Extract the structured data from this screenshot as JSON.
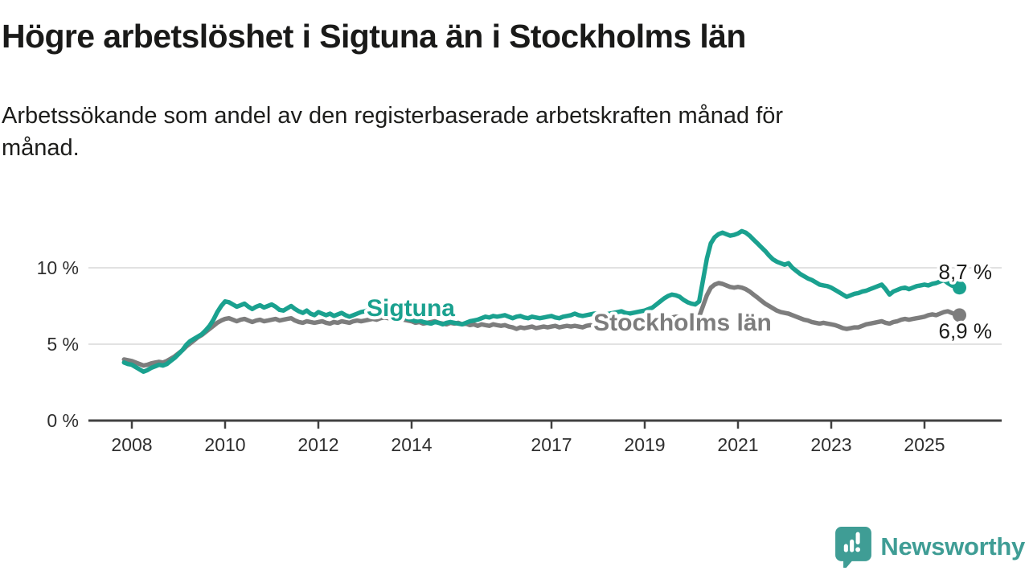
{
  "title": "Högre arbetslöshet i Sigtuna än i Stockholms län",
  "subtitle": "Arbetssökande som andel av den registerbaserade arbetskraften månad för månad.",
  "subtitle_lines": [
    "Arbetssökande som andel av den registerbaserade arbetskraften månad för",
    "månad."
  ],
  "branding": {
    "logo_text": "Newsworthy",
    "logo_icon": "newsworthy-speech-bubble-bar-chart-icon",
    "logo_color": "#3f9d95"
  },
  "colors": {
    "sigtuna": "#1aa18f",
    "stockholm": "#7d7d7d",
    "grid": "#d9d9d9",
    "axis": "#414141",
    "text": "#1d1d1b"
  },
  "chart_data": {
    "type": "line",
    "title": "Högre arbetslöshet i Sigtuna än i Stockholms län",
    "subtitle": "Arbetssökande som andel av den registerbaserade arbetskraften månad för månad.",
    "unit": "%",
    "frequency": "monthly",
    "start": {
      "year": 2007,
      "month": 11
    },
    "xlim": [
      2007.8,
      2026.2
    ],
    "ylim": [
      0,
      13.5
    ],
    "grid": "horizontal",
    "legend": "inline-labels",
    "x_ticks": [
      2008,
      2010,
      2012,
      2014,
      2017,
      2019,
      2021,
      2023,
      2025
    ],
    "y_ticks": [
      {
        "value": 0,
        "label": "0 %"
      },
      {
        "value": 5,
        "label": "5 %"
      },
      {
        "value": 10,
        "label": "10 %"
      }
    ],
    "y_gridlines": [
      5,
      10
    ],
    "series": [
      {
        "id": "sigtuna",
        "name": "Sigtuna",
        "color": "#1aa18f",
        "end_value": 8.7,
        "end_label": "8,7 %",
        "values": [
          3.8,
          3.7,
          3.65,
          3.5,
          3.35,
          3.2,
          3.3,
          3.45,
          3.55,
          3.65,
          3.6,
          3.7,
          3.9,
          4.1,
          4.35,
          4.6,
          4.95,
          5.2,
          5.35,
          5.5,
          5.65,
          5.9,
          6.2,
          6.6,
          7.1,
          7.5,
          7.8,
          7.75,
          7.6,
          7.45,
          7.55,
          7.65,
          7.45,
          7.3,
          7.45,
          7.55,
          7.4,
          7.5,
          7.6,
          7.45,
          7.25,
          7.2,
          7.35,
          7.5,
          7.3,
          7.15,
          7.05,
          7.2,
          7.0,
          6.9,
          7.1,
          7.0,
          6.9,
          7.0,
          6.85,
          6.95,
          7.05,
          6.9,
          6.8,
          6.9,
          7.0,
          7.1,
          7.15,
          7.25,
          7.35,
          7.3,
          7.4,
          7.35,
          7.25,
          7.1,
          6.95,
          6.85,
          6.75,
          6.65,
          6.6,
          6.5,
          6.55,
          6.45,
          6.4,
          6.35,
          6.45,
          6.4,
          6.3,
          6.4,
          6.45,
          6.4,
          6.35,
          6.3,
          6.4,
          6.5,
          6.55,
          6.6,
          6.7,
          6.8,
          6.75,
          6.85,
          6.8,
          6.85,
          6.9,
          6.8,
          6.7,
          6.8,
          6.85,
          6.75,
          6.7,
          6.8,
          6.75,
          6.7,
          6.75,
          6.8,
          6.85,
          6.75,
          6.7,
          6.8,
          6.85,
          6.9,
          7.0,
          6.9,
          6.85,
          6.9,
          6.95,
          7.0,
          7.0,
          6.9,
          6.95,
          7.0,
          7.05,
          7.1,
          7.15,
          7.05,
          7.0,
          7.05,
          7.1,
          7.15,
          7.2,
          7.3,
          7.4,
          7.6,
          7.8,
          8.0,
          8.15,
          8.25,
          8.2,
          8.1,
          7.9,
          7.75,
          7.65,
          7.6,
          7.8,
          9.2,
          10.6,
          11.6,
          12.0,
          12.2,
          12.3,
          12.2,
          12.1,
          12.15,
          12.25,
          12.4,
          12.3,
          12.1,
          11.85,
          11.6,
          11.35,
          11.1,
          10.8,
          10.55,
          10.4,
          10.3,
          10.2,
          10.3,
          10.0,
          9.8,
          9.6,
          9.45,
          9.3,
          9.2,
          9.05,
          8.9,
          8.85,
          8.8,
          8.7,
          8.55,
          8.4,
          8.25,
          8.1,
          8.2,
          8.3,
          8.35,
          8.45,
          8.5,
          8.6,
          8.7,
          8.8,
          8.9,
          8.6,
          8.25,
          8.45,
          8.55,
          8.65,
          8.7,
          8.6,
          8.7,
          8.8,
          8.85,
          8.9,
          8.85,
          8.95,
          9.0,
          9.1,
          9.2,
          9.0,
          8.85,
          8.75,
          8.7
        ]
      },
      {
        "id": "stockholms-lan",
        "name": "Stockholms län",
        "color": "#7d7d7d",
        "end_value": 6.9,
        "end_label": "6,9 %",
        "values": [
          4.0,
          3.95,
          3.9,
          3.8,
          3.7,
          3.6,
          3.65,
          3.75,
          3.8,
          3.85,
          3.8,
          3.9,
          4.05,
          4.2,
          4.4,
          4.6,
          4.85,
          5.05,
          5.25,
          5.45,
          5.6,
          5.8,
          6.0,
          6.2,
          6.4,
          6.55,
          6.65,
          6.7,
          6.6,
          6.5,
          6.6,
          6.65,
          6.55,
          6.45,
          6.55,
          6.6,
          6.5,
          6.55,
          6.6,
          6.65,
          6.55,
          6.6,
          6.65,
          6.7,
          6.55,
          6.45,
          6.4,
          6.5,
          6.45,
          6.4,
          6.45,
          6.5,
          6.4,
          6.35,
          6.45,
          6.4,
          6.5,
          6.45,
          6.4,
          6.5,
          6.55,
          6.5,
          6.55,
          6.6,
          6.65,
          6.6,
          6.7,
          6.75,
          6.7,
          6.65,
          6.6,
          6.65,
          6.6,
          6.55,
          6.5,
          6.4,
          6.45,
          6.35,
          6.4,
          6.45,
          6.5,
          6.4,
          6.35,
          6.3,
          6.4,
          6.35,
          6.4,
          6.3,
          6.35,
          6.25,
          6.3,
          6.2,
          6.3,
          6.25,
          6.2,
          6.3,
          6.25,
          6.2,
          6.25,
          6.15,
          6.1,
          6.0,
          6.1,
          6.05,
          6.1,
          6.15,
          6.05,
          6.1,
          6.15,
          6.1,
          6.15,
          6.2,
          6.1,
          6.15,
          6.2,
          6.15,
          6.2,
          6.15,
          6.1,
          6.2,
          6.25,
          6.2,
          6.25,
          6.15,
          6.2,
          6.25,
          6.2,
          6.3,
          6.25,
          6.2,
          6.25,
          6.2,
          6.3,
          6.25,
          6.3,
          6.35,
          6.4,
          6.45,
          6.5,
          6.6,
          6.7,
          6.75,
          6.8,
          6.75,
          6.7,
          6.65,
          6.6,
          6.6,
          6.8,
          7.5,
          8.2,
          8.7,
          8.9,
          9.0,
          8.95,
          8.85,
          8.75,
          8.7,
          8.75,
          8.7,
          8.6,
          8.45,
          8.25,
          8.05,
          7.85,
          7.65,
          7.5,
          7.35,
          7.2,
          7.1,
          7.05,
          7.0,
          6.9,
          6.8,
          6.7,
          6.6,
          6.55,
          6.45,
          6.4,
          6.35,
          6.4,
          6.35,
          6.3,
          6.25,
          6.15,
          6.05,
          6.0,
          6.05,
          6.1,
          6.1,
          6.2,
          6.3,
          6.35,
          6.4,
          6.45,
          6.5,
          6.4,
          6.35,
          6.45,
          6.5,
          6.6,
          6.65,
          6.6,
          6.65,
          6.7,
          6.75,
          6.8,
          6.9,
          6.95,
          6.9,
          7.0,
          7.1,
          7.15,
          7.05,
          6.95,
          6.9
        ]
      }
    ]
  }
}
